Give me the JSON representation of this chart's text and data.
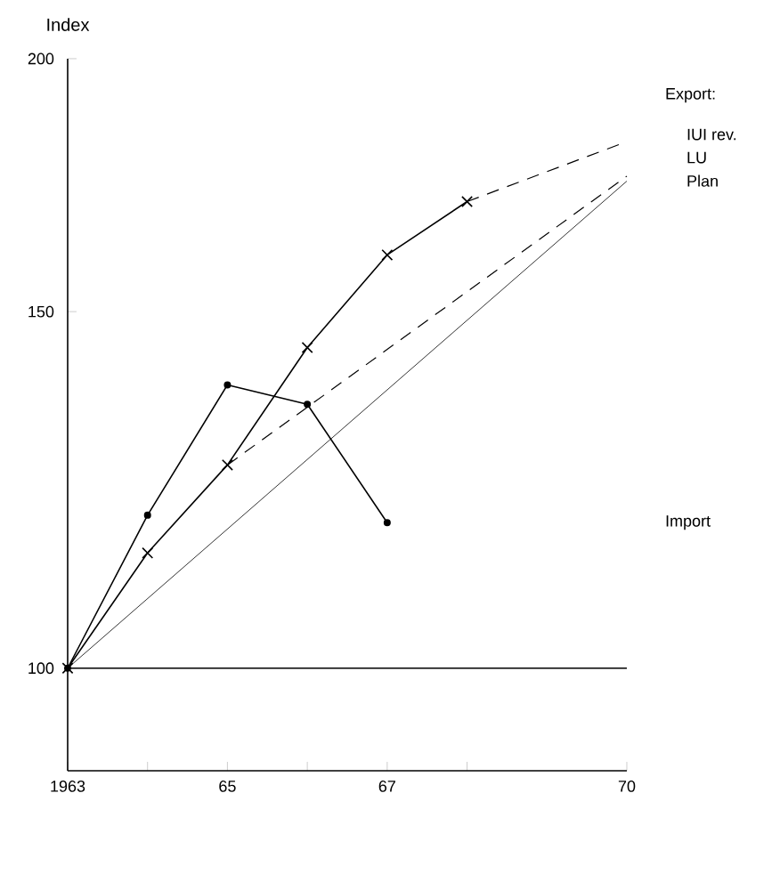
{
  "chart_data": {
    "type": "line",
    "ylabel": "Index",
    "legend_title": "Export:",
    "log": "y",
    "xlim": [
      1963,
      1970
    ],
    "ylim": [
      89,
      200
    ],
    "xticks": [
      {
        "value": 1963,
        "label": "1963"
      },
      {
        "value": 1964,
        "label": null
      },
      {
        "value": 1965,
        "label": "65"
      },
      {
        "value": 1966,
        "label": null
      },
      {
        "value": 1967,
        "label": "67"
      },
      {
        "value": 1968,
        "label": null
      },
      {
        "value": 1970,
        "label": "70"
      }
    ],
    "yticks": [
      100,
      150,
      200
    ],
    "ref_lines": [
      {
        "axis": "y",
        "value": 100,
        "color": "#000000"
      }
    ],
    "series": [
      {
        "color": "#000000",
        "marker": "cross",
        "line_style": "solid",
        "x": [
          1963,
          1964,
          1965,
          1966,
          1967,
          1968
        ],
        "values": [
          100,
          114,
          126,
          144,
          160,
          170
        ]
      },
      {
        "name": "IUI rev.",
        "color": "#000000",
        "marker": "none",
        "line_style": "dashed",
        "x": [
          1968,
          1970
        ],
        "values": [
          170,
          182
        ]
      },
      {
        "name": "LU",
        "color": "#000000",
        "marker": "none",
        "line_style": "dashed",
        "x": [
          1965,
          1970
        ],
        "values": [
          126,
          175
        ]
      },
      {
        "name": "Plan",
        "color": "#000000",
        "marker": "none",
        "line_style": "solid",
        "x": [
          1963,
          1970
        ],
        "values": [
          100,
          174
        ]
      },
      {
        "name": "Import",
        "color": "#000000",
        "marker": "circle",
        "line_style": "solid",
        "x": [
          1963,
          1964,
          1965,
          1966,
          1967
        ],
        "values": [
          100,
          119,
          138,
          135,
          118
        ]
      }
    ]
  }
}
